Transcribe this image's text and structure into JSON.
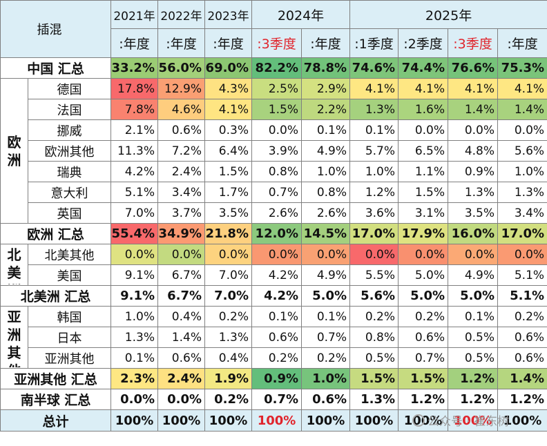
{
  "header": {
    "corner": "插混",
    "years": [
      "2021年",
      "2022年",
      "2023年",
      "2024年",
      "2025年"
    ],
    "subheaders": [
      ":年度",
      ":年度",
      ":年度",
      ":3季度",
      ":年度",
      ":1季度",
      ":2季度",
      ":3季度",
      ":年度"
    ],
    "subheader_highlight": [
      false,
      false,
      false,
      true,
      false,
      false,
      false,
      true,
      false
    ]
  },
  "rows": {
    "china_total": {
      "label": "中国 汇总",
      "values": [
        "33.2%",
        "56.0%",
        "69.0%",
        "82.2%",
        "78.8%",
        "74.6%",
        "74.4%",
        "76.6%",
        "75.3%"
      ],
      "colors": [
        "#9bcc74",
        "#a3d07a",
        "#8cc672",
        "#63be7b",
        "#72c27a",
        "#7ec57a",
        "#7ec57a",
        "#76c37a",
        "#7bc47a"
      ]
    },
    "europe": {
      "region_label": "欧洲",
      "items": [
        {
          "label": "德国",
          "values": [
            "17.8%",
            "12.9%",
            "4.3%",
            "2.5%",
            "2.9%",
            "4.1%",
            "4.1%",
            "4.1%",
            "4.1%"
          ],
          "colors": [
            "#f8696b",
            "#fa9f73",
            "#fee282",
            "#c9de80",
            "#d4e181",
            "#fee783",
            "#fee783",
            "#fee783",
            "#fee783"
          ]
        },
        {
          "label": "法国",
          "values": [
            "7.8%",
            "4.6%",
            "4.1%",
            "1.5%",
            "2.2%",
            "1.3%",
            "1.6%",
            "1.4%",
            "1.4%"
          ],
          "colors": [
            "#f9826f",
            "#fecd7e",
            "#fee582",
            "#a8d27e",
            "#bed97f",
            "#a5d17e",
            "#abd47e",
            "#a8d27e",
            "#a8d27e"
          ]
        },
        {
          "label": "挪威",
          "values": [
            "2.1%",
            "0.6%",
            "0.3%",
            "0.0%",
            "0.1%",
            "0.1%",
            "0.0%",
            "0.0%",
            "0.0%"
          ]
        },
        {
          "label": "欧洲其他",
          "values": [
            "11.3%",
            "7.2%",
            "6.4%",
            "3.9%",
            "4.9%",
            "5.7%",
            "6.5%",
            "4.8%",
            "5.6%"
          ]
        },
        {
          "label": "瑞典",
          "values": [
            "4.2%",
            "2.4%",
            "1.5%",
            "0.8%",
            "1.0%",
            "1.0%",
            "1.1%",
            "0.9%",
            "1.0%"
          ]
        },
        {
          "label": "意大利",
          "values": [
            "5.1%",
            "3.4%",
            "1.7%",
            "0.7%",
            "0.8%",
            "1.2%",
            "1.5%",
            "1.3%",
            "1.3%"
          ]
        },
        {
          "label": "英国",
          "values": [
            "7.0%",
            "3.7%",
            "3.5%",
            "2.6%",
            "2.6%",
            "3.6%",
            "3.1%",
            "3.5%",
            "3.4%"
          ]
        }
      ]
    },
    "europe_total": {
      "label": "欧洲 汇总",
      "values": [
        "55.4%",
        "34.9%",
        "21.8%",
        "12.0%",
        "14.5%",
        "17.0%",
        "17.9%",
        "16.0%",
        "17.0%"
      ],
      "colors": [
        "#f8696b",
        "#fb9a72",
        "#fdd07f",
        "#8cc97e",
        "#a4d07e",
        "#d2df80",
        "#dee281",
        "#c1da80",
        "#d2df80"
      ]
    },
    "north_america": {
      "region_label": "北美洲",
      "items": [
        {
          "label": "北美其他",
          "values": [
            "0.0%",
            "0.0%",
            "0.0%",
            "0.0%",
            "0.0%",
            "0.0%",
            "0.0%",
            "0.0%",
            "0.0%"
          ],
          "colors": [
            "#dfe282",
            "#c3da80",
            "#fdd37f",
            "#f99871",
            "#f9a173",
            "#f8696b",
            "#f9906f",
            "#fba975",
            "#fa9a72"
          ]
        },
        {
          "label": "美国",
          "values": [
            "9.1%",
            "6.7%",
            "7.0%",
            "4.2%",
            "4.9%",
            "5.5%",
            "5.0%",
            "4.9%",
            "5.1%"
          ]
        }
      ]
    },
    "north_america_total": {
      "label": "北美洲 汇总",
      "values": [
        "9.1%",
        "6.7%",
        "7.0%",
        "4.2%",
        "5.0%",
        "5.6%",
        "5.0%",
        "5.0%",
        "5.1%"
      ]
    },
    "asia_other": {
      "region_label": "亚洲其他",
      "items": [
        {
          "label": "韩国",
          "values": [
            "1.0%",
            "0.4%",
            "0.2%",
            "0.1%",
            "0.1%",
            "0.2%",
            "0.2%",
            "0.1%",
            "0.2%"
          ]
        },
        {
          "label": "日本",
          "values": [
            "1.3%",
            "1.4%",
            "1.3%",
            "0.6%",
            "0.7%",
            "0.8%",
            "0.6%",
            "0.5%",
            "0.6%"
          ]
        },
        {
          "label": "亚洲其他",
          "values": [
            "0.1%",
            "0.6%",
            "0.4%",
            "0.2%",
            "0.2%",
            "0.5%",
            "0.7%",
            "0.5%",
            "0.6%"
          ]
        }
      ]
    },
    "asia_other_total": {
      "label": "亚洲其他 汇总",
      "values": [
        "2.3%",
        "2.4%",
        "1.9%",
        "0.9%",
        "1.0%",
        "1.5%",
        "1.5%",
        "1.2%",
        "1.4%"
      ],
      "colors": [
        "#fee783",
        "#fee182",
        "#f2e883",
        "#63be7b",
        "#77c47c",
        "#c6db80",
        "#c6db80",
        "#a3d07e",
        "#b5d67f"
      ]
    },
    "southern_total": {
      "label": "南半球 汇总",
      "values": [
        "0.0%",
        "0.0%",
        "0.2%",
        "0.7%",
        "0.6%",
        "1.3%",
        "1.2%",
        "1.2%",
        "1.2%"
      ]
    },
    "grand_total": {
      "label": "总计",
      "values": [
        "100%",
        "100%",
        "100%",
        "100%",
        "100%",
        "100%",
        "100%",
        "100%",
        "100%"
      ],
      "highlight": [
        false,
        false,
        false,
        true,
        false,
        false,
        false,
        true,
        false
      ]
    }
  },
  "watermark": "公众号 · 崔东树"
}
